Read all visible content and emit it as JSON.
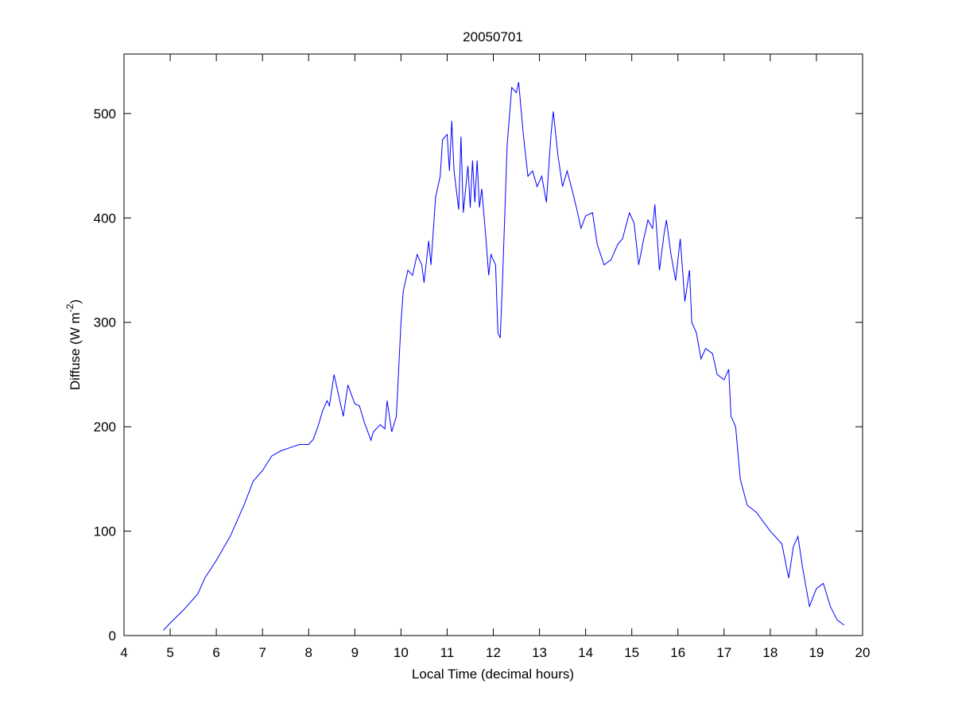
{
  "chart_data": {
    "type": "line",
    "title": "20050701",
    "xlabel": "Local Time (decimal hours)",
    "ylabel": [
      "Diffuse (W m",
      "-2",
      ")"
    ],
    "xlim": [
      4,
      20
    ],
    "ylim": [
      0,
      557
    ],
    "xticks": [
      4,
      5,
      6,
      7,
      8,
      9,
      10,
      11,
      12,
      13,
      14,
      15,
      16,
      17,
      18,
      19,
      20
    ],
    "yticks": [
      0,
      100,
      200,
      300,
      400,
      500
    ],
    "grid": false,
    "series": [
      {
        "color": "#0000ff",
        "x": [
          4.85,
          5.0,
          5.3,
          5.6,
          5.75,
          6.0,
          6.3,
          6.6,
          6.8,
          7.0,
          7.2,
          7.4,
          7.6,
          7.8,
          8.0,
          8.1,
          8.2,
          8.3,
          8.4,
          8.45,
          8.55,
          8.65,
          8.75,
          8.85,
          9.0,
          9.1,
          9.2,
          9.35,
          9.4,
          9.55,
          9.65,
          9.7,
          9.8,
          9.9,
          10.0,
          10.05,
          10.15,
          10.25,
          10.35,
          10.45,
          10.5,
          10.6,
          10.65,
          10.75,
          10.85,
          10.9,
          11.0,
          11.05,
          11.1,
          11.15,
          11.25,
          11.3,
          11.35,
          11.45,
          11.5,
          11.55,
          11.6,
          11.65,
          11.7,
          11.75,
          11.85,
          11.9,
          11.95,
          12.05,
          12.1,
          12.15,
          12.2,
          12.3,
          12.4,
          12.5,
          12.55,
          12.65,
          12.75,
          12.85,
          12.95,
          13.05,
          13.15,
          13.25,
          13.3,
          13.4,
          13.5,
          13.6,
          13.7,
          13.8,
          13.9,
          14.0,
          14.15,
          14.25,
          14.4,
          14.55,
          14.7,
          14.8,
          14.95,
          15.05,
          15.15,
          15.25,
          15.35,
          15.45,
          15.5,
          15.6,
          15.7,
          15.75,
          15.85,
          15.95,
          16.05,
          16.15,
          16.25,
          16.3,
          16.4,
          16.5,
          16.6,
          16.75,
          16.85,
          17.0,
          17.1,
          17.15,
          17.25,
          17.35,
          17.5,
          17.7,
          18.0,
          18.25,
          18.4,
          18.5,
          18.6,
          18.7,
          18.85,
          19.0,
          19.15,
          19.3,
          19.45,
          19.6
        ],
        "values": [
          5,
          12,
          25,
          40,
          55,
          72,
          95,
          125,
          148,
          158,
          172,
          177,
          180,
          183,
          183,
          188,
          200,
          215,
          225,
          220,
          250,
          230,
          210,
          240,
          222,
          220,
          205,
          187,
          195,
          202,
          198,
          225,
          195,
          210,
          300,
          330,
          350,
          345,
          365,
          355,
          338,
          378,
          355,
          420,
          440,
          475,
          480,
          445,
          493,
          445,
          408,
          478,
          405,
          450,
          410,
          455,
          415,
          455,
          410,
          428,
          375,
          345,
          365,
          355,
          290,
          285,
          340,
          470,
          525,
          520,
          530,
          480,
          440,
          445,
          430,
          440,
          415,
          480,
          502,
          460,
          430,
          445,
          428,
          410,
          390,
          402,
          405,
          375,
          355,
          360,
          375,
          380,
          405,
          395,
          355,
          378,
          398,
          390,
          413,
          350,
          385,
          398,
          365,
          340,
          380,
          320,
          350,
          300,
          290,
          265,
          275,
          270,
          250,
          245,
          255,
          210,
          200,
          150,
          125,
          118,
          100,
          88,
          55,
          85,
          95,
          65,
          28,
          45,
          50,
          28,
          15,
          10
        ]
      }
    ]
  }
}
